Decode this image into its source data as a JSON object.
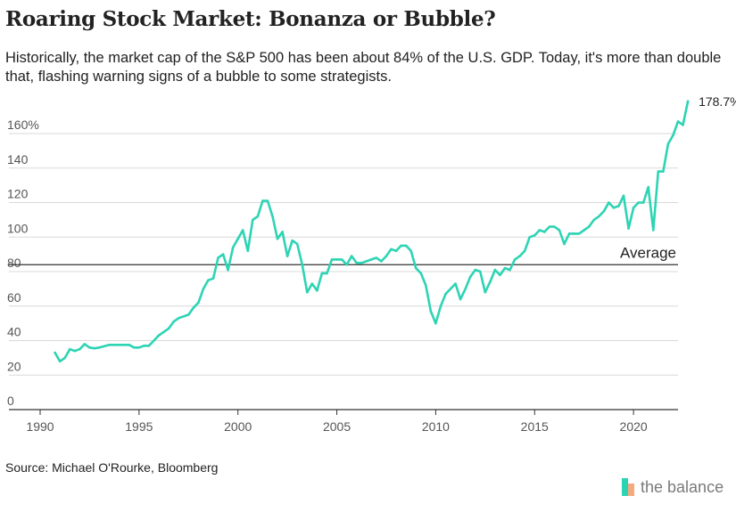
{
  "title": "Roaring Stock Market: Bonanza or Bubble?",
  "subtitle": "Historically, the market cap of the S&P 500 has been about 84% of the U.S. GDP. Today, it's more than double that, flashing warning signs of a bubble to some strategists.",
  "source": "Source: Michael O'Rourke, Bloomberg",
  "brand": "the balance",
  "colors": {
    "line": "#2dd4b4",
    "average": "#333333",
    "grid": "#d9d9d9",
    "text": "#222222",
    "brand_teal": "#2dd4b4",
    "brand_peach": "#f5a97f"
  },
  "chart_data": {
    "type": "line",
    "title": "",
    "xlabel": "",
    "ylabel": "",
    "xlim": [
      1990,
      2022.3
    ],
    "ylim": [
      0,
      180
    ],
    "yticks": [
      0,
      20,
      40,
      60,
      80,
      100,
      120,
      140,
      160
    ],
    "ytick_labels": [
      "0",
      "20",
      "40",
      "60",
      "80",
      "100",
      "120",
      "140",
      "160%"
    ],
    "xticks": [
      1990,
      1995,
      2000,
      2005,
      2010,
      2015,
      2020
    ],
    "xtick_labels": [
      "1990",
      "1995",
      "2000",
      "2005",
      "2010",
      "2015",
      "2020"
    ],
    "grid": true,
    "reference_line": {
      "value": 84,
      "label": "Average"
    },
    "end_label": "178.7%",
    "series": [
      {
        "values": [
          [
            1990.75,
            33
          ],
          [
            1991.0,
            28
          ],
          [
            1991.25,
            30
          ],
          [
            1991.5,
            35
          ],
          [
            1991.75,
            34
          ],
          [
            1992.0,
            35
          ],
          [
            1992.25,
            38
          ],
          [
            1992.5,
            36
          ],
          [
            1992.75,
            35.5
          ],
          [
            1993.0,
            36
          ],
          [
            1993.5,
            37.5
          ],
          [
            1994.0,
            37.5
          ],
          [
            1994.5,
            37.5
          ],
          [
            1994.75,
            36
          ],
          [
            1995.0,
            36
          ],
          [
            1995.25,
            37
          ],
          [
            1995.5,
            37
          ],
          [
            1995.75,
            40
          ],
          [
            1996.0,
            43
          ],
          [
            1996.5,
            47
          ],
          [
            1996.75,
            51
          ],
          [
            1997.0,
            53
          ],
          [
            1997.5,
            55
          ],
          [
            1997.75,
            59
          ],
          [
            1998.0,
            62
          ],
          [
            1998.25,
            70
          ],
          [
            1998.5,
            75
          ],
          [
            1998.75,
            76
          ],
          [
            1999.0,
            88
          ],
          [
            1999.25,
            90
          ],
          [
            1999.5,
            81
          ],
          [
            1999.75,
            94
          ],
          [
            2000.0,
            99
          ],
          [
            2000.25,
            104
          ],
          [
            2000.5,
            92
          ],
          [
            2000.75,
            110
          ],
          [
            2001.0,
            112
          ],
          [
            2001.25,
            121
          ],
          [
            2001.5,
            121
          ],
          [
            2001.75,
            112
          ],
          [
            2002.0,
            99
          ],
          [
            2002.25,
            103
          ],
          [
            2002.5,
            89
          ],
          [
            2002.75,
            98
          ],
          [
            2003.0,
            96
          ],
          [
            2003.25,
            84
          ],
          [
            2003.5,
            68
          ],
          [
            2003.75,
            73
          ],
          [
            2004.0,
            69
          ],
          [
            2004.25,
            79
          ],
          [
            2004.5,
            79
          ],
          [
            2004.75,
            87
          ],
          [
            2005.0,
            87
          ],
          [
            2005.25,
            87
          ],
          [
            2005.5,
            84
          ],
          [
            2005.75,
            89
          ],
          [
            2006.0,
            85
          ],
          [
            2006.25,
            85
          ],
          [
            2006.5,
            86
          ],
          [
            2006.75,
            87
          ],
          [
            2007.0,
            88
          ],
          [
            2007.25,
            86
          ],
          [
            2007.5,
            89
          ],
          [
            2007.75,
            93
          ],
          [
            2008.0,
            92
          ],
          [
            2008.25,
            95
          ],
          [
            2008.5,
            95
          ],
          [
            2008.75,
            92
          ],
          [
            2009.0,
            82
          ],
          [
            2009.25,
            79
          ],
          [
            2009.5,
            72
          ],
          [
            2009.75,
            57
          ],
          [
            2010.0,
            50
          ],
          [
            2010.25,
            60
          ],
          [
            2010.5,
            67
          ],
          [
            2010.75,
            70
          ],
          [
            2011.0,
            73
          ],
          [
            2011.25,
            64
          ],
          [
            2011.5,
            70
          ],
          [
            2011.75,
            77
          ],
          [
            2012.0,
            81
          ],
          [
            2012.25,
            80
          ],
          [
            2012.5,
            68
          ],
          [
            2012.75,
            74
          ],
          [
            2013.0,
            81
          ],
          [
            2013.25,
            78
          ],
          [
            2013.5,
            82
          ],
          [
            2013.75,
            81
          ],
          [
            2014.0,
            87
          ],
          [
            2014.25,
            89
          ],
          [
            2014.5,
            92
          ],
          [
            2014.75,
            100
          ],
          [
            2015.0,
            101
          ],
          [
            2015.25,
            104
          ],
          [
            2015.5,
            103
          ],
          [
            2015.75,
            106
          ],
          [
            2016.0,
            106
          ],
          [
            2016.25,
            104
          ],
          [
            2016.5,
            96
          ],
          [
            2016.75,
            102
          ],
          [
            2017.0,
            102
          ],
          [
            2017.25,
            102
          ],
          [
            2017.5,
            104
          ],
          [
            2017.75,
            106
          ],
          [
            2018.0,
            110
          ],
          [
            2018.25,
            112
          ],
          [
            2018.5,
            115
          ],
          [
            2018.75,
            120
          ],
          [
            2019.0,
            117
          ],
          [
            2019.25,
            118
          ],
          [
            2019.5,
            124
          ],
          [
            2019.75,
            105
          ],
          [
            2020.0,
            117
          ],
          [
            2020.25,
            120
          ],
          [
            2020.5,
            120
          ],
          [
            2020.75,
            129
          ],
          [
            2021.0,
            104
          ],
          [
            2021.25,
            138
          ],
          [
            2021.5,
            138
          ],
          [
            2021.75,
            154
          ],
          [
            2022.0,
            159
          ],
          [
            2022.25,
            167
          ],
          [
            2022.5,
            165
          ],
          [
            2022.75,
            178.7
          ]
        ]
      }
    ]
  }
}
